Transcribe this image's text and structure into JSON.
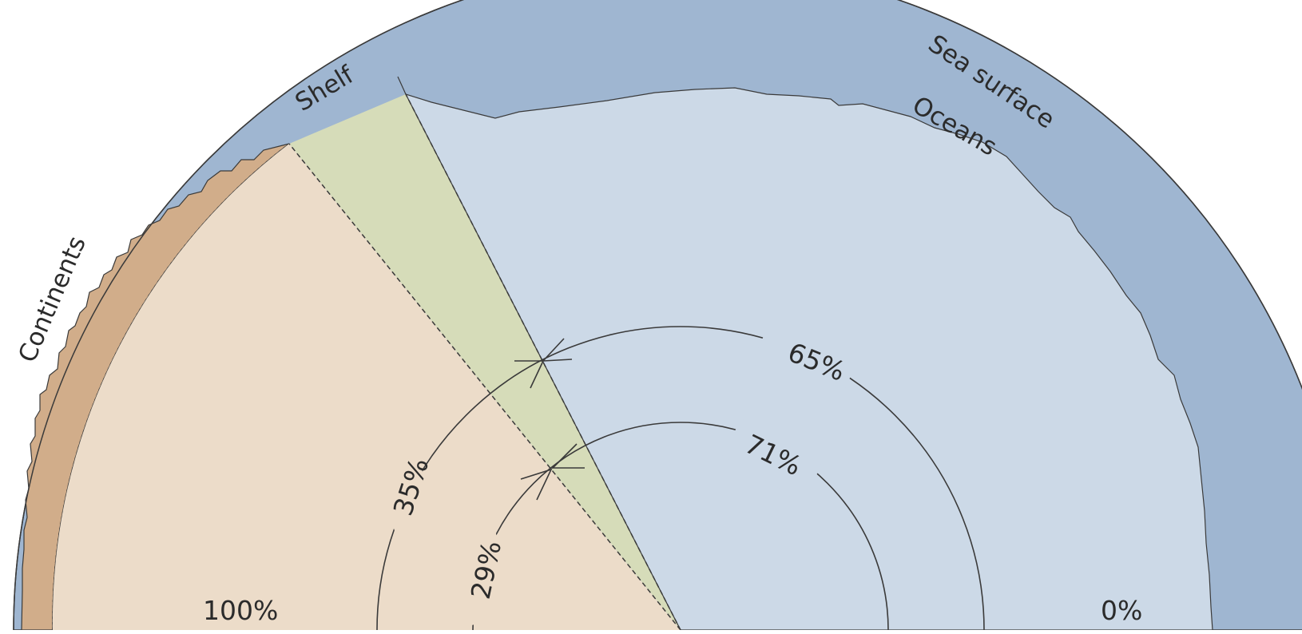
{
  "labels": {
    "shelf": "Shelf",
    "sea_surface": "Sea surface",
    "oceans": "Oceans",
    "continents": "Continents",
    "outer_ring_left": "35%",
    "outer_ring_right": "65%",
    "inner_ring_left": "29%",
    "inner_ring_right": "71%",
    "left_end": "100%",
    "right_end": "0%"
  },
  "colors": {
    "ocean_depth": "#9fb6d1",
    "ocean_light": "#ccd9e7",
    "shelf_wedge": "#d6dcb9",
    "land_light": "#ecdcc9",
    "land_dark": "#d1ad8a",
    "line": "#3a3a3a"
  }
}
